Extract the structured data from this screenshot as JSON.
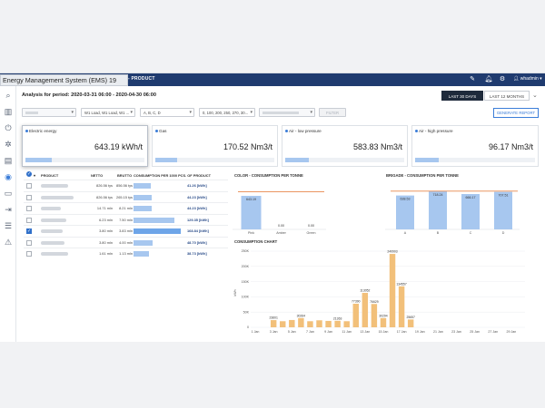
{
  "app": {
    "title": "Energy Management System (EMS) 19",
    "module": "- PRODUCT",
    "user": "whadmin",
    "notification_count": "1"
  },
  "period": {
    "label": "Analysis for period: 2020-03-31 06:00 - 2020-04-30 06:00",
    "buttons": [
      "LAST 30 DAYS",
      "LAST 12 MONTHS"
    ]
  },
  "filters": {
    "f1": "blurred",
    "f2": "W1 Load, W1 Load, W1 ...",
    "f3": "A, B, C, D",
    "f4": "0, 100, 200, 250, 270, 30...",
    "f5": "blurred",
    "f6": "FILTER",
    "generate_report": "GENERATE REPORT"
  },
  "kpis": [
    {
      "label": "Electric energy",
      "value": "643.19 kWh/t",
      "fill": 0.22
    },
    {
      "label": "Gas",
      "value": "170.52 Nm3/t",
      "fill": 0.18
    },
    {
      "label": "Air - low pressure",
      "value": "583.83 Nm3/t",
      "fill": 0.2
    },
    {
      "label": "Air - high pressure",
      "value": "96.17 Nm3/t",
      "fill": 0.2
    }
  ],
  "table": {
    "headers": [
      "PRODUCT",
      "NETTO",
      "BRUTTO",
      "CONSUMPTION PER 1000 PCS. OF PRODUCT"
    ],
    "rows": [
      {
        "netto": "826.56 tys",
        "brutto": "856.56 tys",
        "value": "41.26 [kWh]",
        "fraction": 0.36,
        "checked": false
      },
      {
        "netto": "826.56 tys",
        "brutto": "265.15 tys",
        "value": "44.23 [kWh]",
        "fraction": 0.39,
        "checked": false
      },
      {
        "netto": "14.71 mln",
        "brutto": "8.21 mln",
        "value": "44.23 [kWh]",
        "fraction": 0.39,
        "checked": false
      },
      {
        "netto": "6.23 mln",
        "brutto": "7.50 mln",
        "value": "129.35 [kWh]",
        "fraction": 0.86,
        "checked": false
      },
      {
        "netto": "3.80 mln",
        "brutto": "3.83 mln",
        "value": "168.84 [kWh]",
        "fraction": 1.0,
        "checked": true
      },
      {
        "netto": "3.80 mln",
        "brutto": "4.00 mln",
        "value": "48.70 [kWh]",
        "fraction": 0.41,
        "checked": false
      },
      {
        "netto": "1.61 mln",
        "brutto": "1.13 mln",
        "value": "38.73 [kWh]",
        "fraction": 0.33,
        "checked": false
      }
    ]
  },
  "colors": {
    "bar": "#a7c7ef",
    "bar_selected": "#6ea5e8",
    "orange_bar": "#f2c07a",
    "target_line": "#e8874a",
    "topbar": "#1f3b6f"
  },
  "chart_data": [
    {
      "type": "bar",
      "title": "COLOR - CONSUMPTION PER TONNE",
      "categories": [
        "Pink",
        "Amber",
        "Green"
      ],
      "values": [
        643.19,
        0.0,
        0.0
      ],
      "data_labels": [
        "643.19",
        "0.00",
        "0.00"
      ],
      "target": 720,
      "ylim": [
        0,
        800
      ]
    },
    {
      "type": "bar",
      "title": "BRIGADE - CONSUMPTION PER TONNE",
      "categories": [
        "A",
        "B",
        "C",
        "D"
      ],
      "values": [
        638.53,
        718.24,
        666.17,
        707.51
      ],
      "data_labels": [
        "638.53",
        "718.24",
        "666.17",
        "707.51"
      ],
      "target": 720,
      "ylim": [
        0,
        820
      ]
    },
    {
      "type": "bar",
      "title": "CONSUMPTION CHART",
      "ylabel": "kWh",
      "categories": [
        "1 Jan",
        "2 Jan",
        "3 Jan",
        "4 Jan",
        "5 Jan",
        "6 Jan",
        "7 Jan",
        "8 Jan",
        "9 Jan",
        "10 Jan",
        "11 Jan",
        "12 Jan",
        "13 Jan",
        "14 Jan",
        "15 Jan",
        "16 Jan",
        "17 Jan",
        "18 Jan",
        "19 Jan",
        "20 Jan",
        "21 Jan",
        "22 Jan",
        "23 Jan",
        "24 Jan",
        "25 Jan",
        "26 Jan",
        "27 Jan",
        "28 Jan",
        "29 Jan",
        "30 Jan"
      ],
      "values": [
        0,
        0,
        23601,
        20000,
        24000,
        30264,
        20000,
        23000,
        21000,
        21363,
        20000,
        77390,
        113052,
        76629,
        30294,
        240903,
        134557,
        25657,
        0,
        0,
        0,
        0,
        0,
        0,
        0,
        0,
        0,
        0,
        0,
        0
      ],
      "data_labels": [
        "",
        "",
        "23601",
        "",
        "",
        "30264",
        "",
        "",
        "",
        "21363",
        "",
        "77390",
        "113052",
        "76629",
        "30294",
        "240903",
        "134557",
        "25657",
        "",
        "",
        "",
        "",
        "",
        "",
        "",
        "",
        "",
        "",
        "",
        ""
      ],
      "x_ticks": [
        "1 Jan",
        "3 Jan",
        "5 Jan",
        "7 Jan",
        "9 Jan",
        "11 Jan",
        "13 Jan",
        "15 Jan",
        "17 Jan",
        "19 Jan",
        "21 Jan",
        "23 Jan",
        "25 Jan",
        "27 Jan",
        "29 Jan"
      ],
      "y_ticks": [
        "0",
        "50K",
        "100K",
        "150K",
        "200K",
        "250K"
      ],
      "ylim": [
        0,
        250000
      ]
    }
  ]
}
